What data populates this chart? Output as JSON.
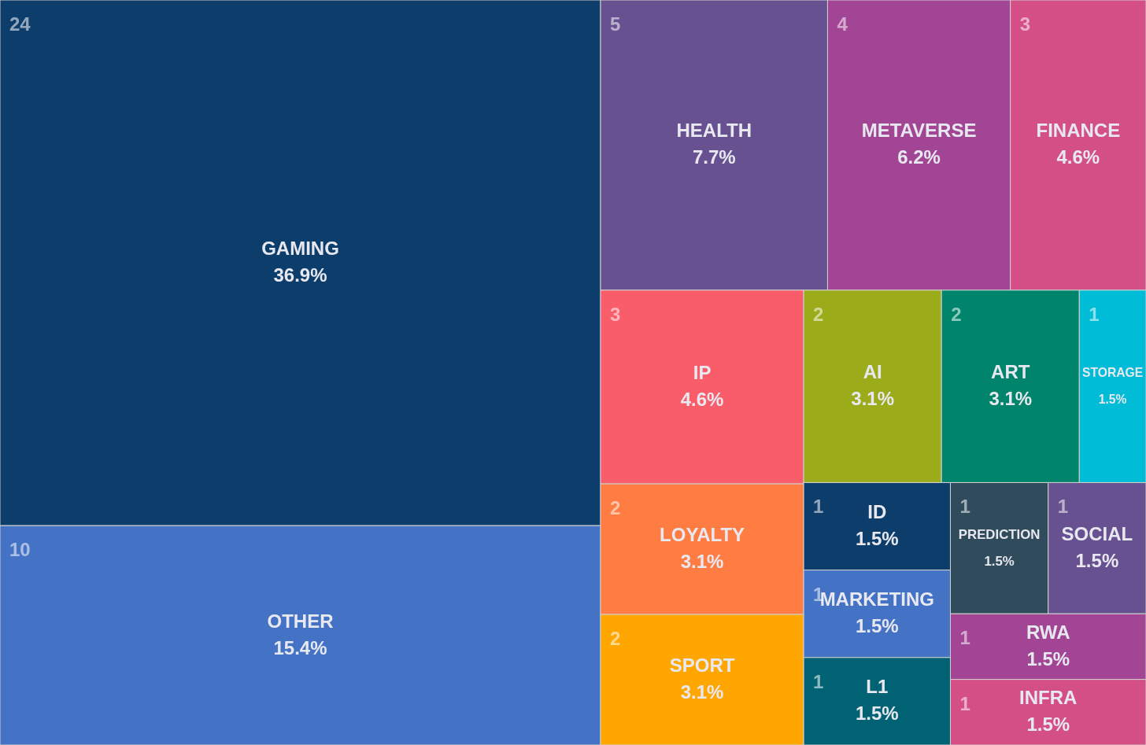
{
  "chart_data": {
    "type": "other",
    "categories": [
      "GAMING",
      "OTHER",
      "HEALTH",
      "METAVERSE",
      "FINANCE",
      "IP",
      "LOYALTY",
      "SPORT",
      "AI",
      "ART",
      "STORAGE",
      "ID",
      "MARKETING",
      "L1",
      "PREDICTION",
      "SOCIAL",
      "RWA",
      "INFRA"
    ],
    "values": [
      36.9,
      15.4,
      7.7,
      6.2,
      4.6,
      4.6,
      3.1,
      3.1,
      3.1,
      3.1,
      1.5,
      1.5,
      1.5,
      1.5,
      1.5,
      1.5,
      1.5,
      1.5
    ],
    "value_labels": [
      "36.9%",
      "15.4%",
      "7.7%",
      "6.2%",
      "4.6%",
      "4.6%",
      "3.1%",
      "3.1%",
      "3.1%",
      "3.1%",
      "1.5%",
      "1.5%",
      "1.5%",
      "1.5%",
      "1.5%",
      "1.5%",
      "1.5%",
      "1.5%"
    ],
    "annotations": [
      "24",
      "10",
      "5",
      "4",
      "3",
      "3",
      "2",
      "2",
      "2",
      "2",
      "1",
      "1",
      "1",
      "1",
      "1",
      "1",
      "1",
      "1"
    ],
    "colors": [
      "#0d3d6b",
      "#4472c4",
      "#675190",
      "#a14594",
      "#d44f86",
      "#f95d6a",
      "#ff7c43",
      "#ffa600",
      "#9bab1a",
      "#00846b",
      "#00bcd6",
      "#0d3d6b",
      "#4472c4",
      "#006272",
      "#2f4b5c",
      "#675190",
      "#a14594",
      "#d44f86"
    ]
  }
}
